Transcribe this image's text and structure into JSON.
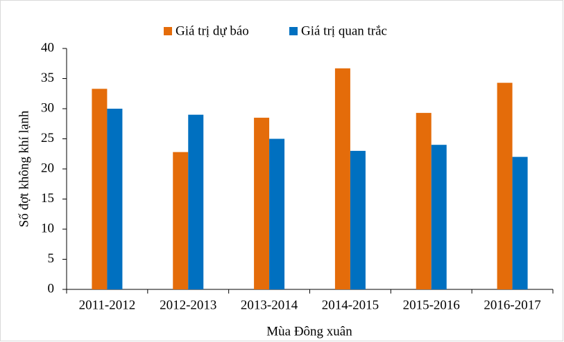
{
  "chart_data": {
    "type": "bar",
    "x_label": "Mùa Đông xuân",
    "y_label": "Số đợt không khí lạnh",
    "categories": [
      "2011-2012",
      "2012-2013",
      "2013-2014",
      "2014-2015",
      "2015-2016",
      "2016-2017"
    ],
    "series": [
      {
        "name": "Giá trị dự báo",
        "color": "#e46c0a",
        "values": [
          33.3,
          22.8,
          28.5,
          36.7,
          29.3,
          34.3
        ]
      },
      {
        "name": "Giá trị quan trắc",
        "color": "#0070c0",
        "values": [
          30,
          29,
          25,
          23,
          24,
          22
        ]
      }
    ],
    "ylim": [
      0,
      40
    ],
    "yticks": [
      0,
      5,
      10,
      15,
      20,
      25,
      30,
      35,
      40
    ],
    "grid": false,
    "legend": "top"
  }
}
